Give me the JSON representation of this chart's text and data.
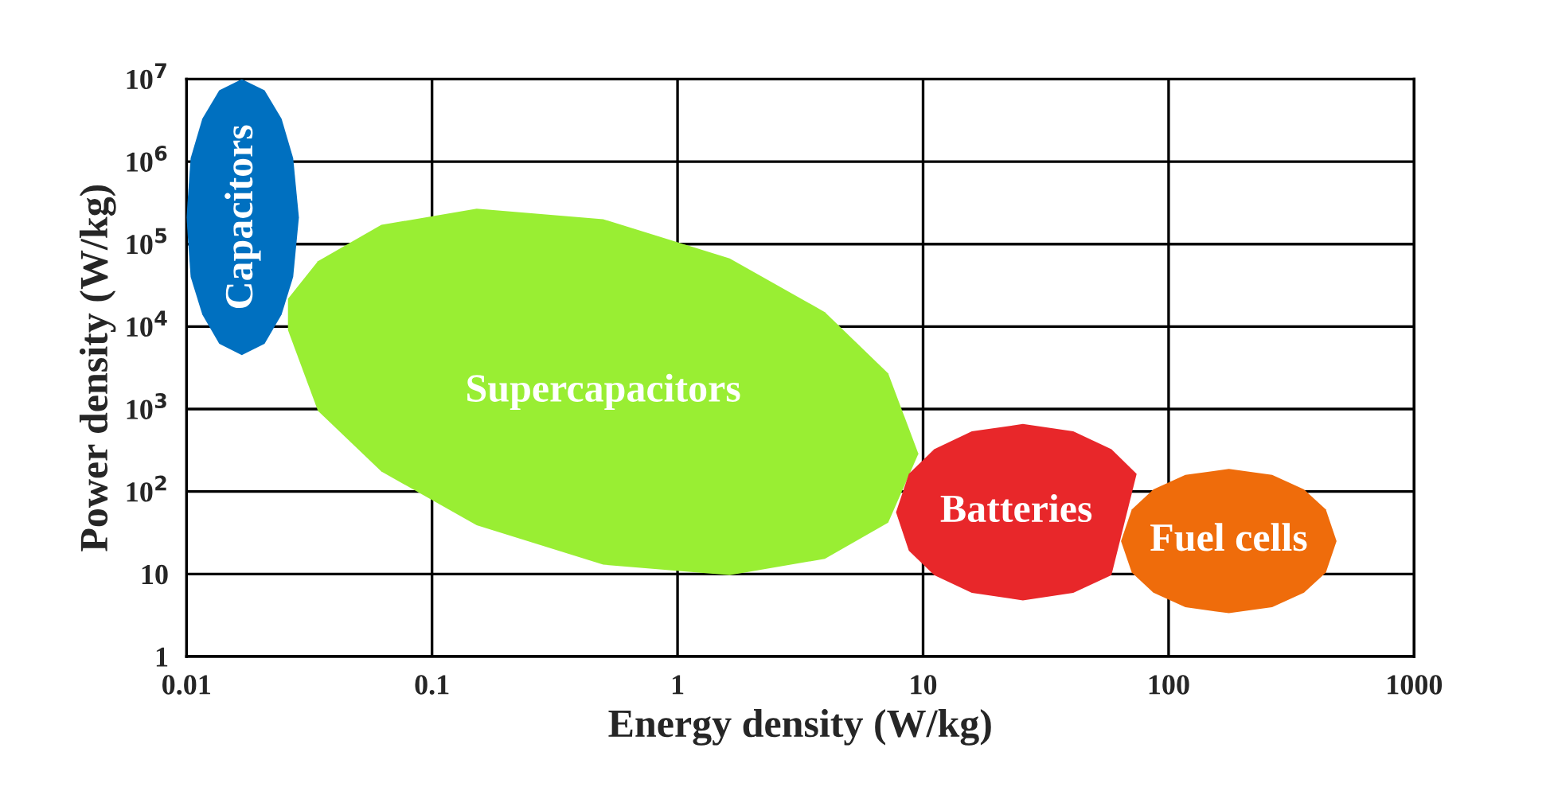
{
  "chart_data": {
    "type": "area",
    "xlabel": "Energy density (W/kg)",
    "ylabel": "Power density (W/kg)",
    "log": "xy",
    "grid": true,
    "legend": false,
    "xlim": [
      0.01,
      1000
    ],
    "xticks": [
      0.01,
      0.1,
      1,
      10,
      100,
      1000
    ],
    "ylim": [
      1,
      10000000
    ],
    "yticks": [
      1,
      10,
      {
        "value": 100,
        "label": "10$^{2}$"
      },
      {
        "value": 1000,
        "label": "10$^{3}$"
      },
      {
        "value": 10000,
        "label": "10$^{4}$"
      },
      {
        "value": 100000,
        "label": "10$^{5}$"
      },
      {
        "value": 1000000,
        "label": "10$^{6}$"
      },
      {
        "value": 10000000,
        "label": "10$^{7}$"
      }
    ],
    "series": [
      {
        "name": "Supercapacitors",
        "color": "#99ee33",
        "x": [
          0.0259,
          0.0343,
          0.0622,
          0.152,
          0.498,
          1.63,
          3.98,
          7.21,
          9.57,
          7.21,
          3.98,
          1.63,
          0.498,
          0.152,
          0.0622,
          0.0343,
          0.0259
        ],
        "values": [
          21700,
          62000,
          171000,
          269000,
          200000,
          67000,
          15000,
          2700,
          287,
          41.9,
          15.3,
          9.7,
          13.0,
          39,
          175,
          953,
          9100
        ]
      },
      {
        "name": "Capacitors",
        "color": "#0070c0",
        "x": [
          0.01,
          0.0104,
          0.0116,
          0.0136,
          0.0168,
          0.0208,
          0.0244,
          0.0272,
          0.0287,
          0.0272,
          0.0244,
          0.0208,
          0.0168,
          0.0136,
          0.0116,
          0.0104
        ],
        "values": [
          210000,
          1100000,
          3300000,
          7300000,
          10000000,
          7300000,
          3300000,
          1100000,
          210000,
          40000,
          14000,
          6200,
          4500,
          6200,
          14000,
          40000
        ]
      },
      {
        "name": "Batteries",
        "color": "#e8272a",
        "x": [
          7.76,
          8.75,
          11.1,
          15.8,
          25.5,
          40.9,
          58.5,
          74.1,
          58.5,
          40.9,
          25.5,
          15.8,
          11.1,
          8.75
        ],
        "values": [
          56,
          164,
          326,
          537,
          659,
          537,
          326,
          164,
          9.7,
          5.9,
          4.8,
          5.9,
          9.7,
          19.2
        ]
      },
      {
        "name": "Fuel cells",
        "color": "#ef6c0b",
        "x": [
          64.0,
          70.8,
          86.7,
          117,
          176,
          264,
          356,
          437,
          483,
          437,
          356,
          264,
          176,
          117,
          86.7,
          70.8
        ],
        "values": [
          25.1,
          60.5,
          106,
          159,
          188,
          159,
          106,
          60.5,
          25.1,
          10.4,
          5.96,
          3.96,
          3.35,
          3.96,
          5.96,
          10.4
        ]
      }
    ]
  }
}
